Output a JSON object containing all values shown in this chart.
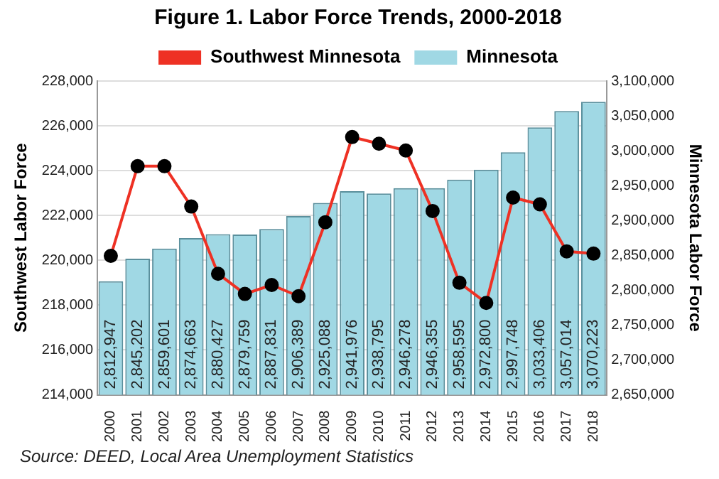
{
  "chart_data": {
    "type": "bar",
    "title": "Figure 1. Labor Force Trends, 2000-2018",
    "ylabel": "Southwest Labor Force",
    "y2label": "Minnesota Labor Force",
    "categories": [
      "2000",
      "2001",
      "2002",
      "2003",
      "2004",
      "2005",
      "2006",
      "2007",
      "2008",
      "2009",
      "2010",
      "2011",
      "2012",
      "2013",
      "2014",
      "2015",
      "2016",
      "2017",
      "2018"
    ],
    "series": [
      {
        "name": "Southwest Minnesota",
        "type": "line",
        "color": "#ee3124",
        "axis": "y",
        "values": [
          220200,
          224200,
          224200,
          222400,
          219400,
          218500,
          218900,
          218400,
          221700,
          225500,
          225200,
          224900,
          222200,
          219000,
          218100,
          222800,
          222500,
          220400,
          220300
        ]
      },
      {
        "name": "Minnesota",
        "color": "#a0d8e4",
        "axis": "y2",
        "values": [
          2812947,
          2845202,
          2859601,
          2874663,
          2880427,
          2879759,
          2887831,
          2906389,
          2925088,
          2941976,
          2938795,
          2946278,
          2946355,
          2958595,
          2972800,
          2997748,
          3033406,
          3057014,
          3070223
        ],
        "value_labels": [
          "2,812,947",
          "2,845,202",
          "2,859,601",
          "2,874,663",
          "2,880,427",
          "2,879,759",
          "2,887,831",
          "2,906,389",
          "2,925,088",
          "2,941,976",
          "2,938,795",
          "2,946,278",
          "2,946,355",
          "2,958,595",
          "2,972,800",
          "2,997,748",
          "3,033,406",
          "3,057,014",
          "3,070,223"
        ]
      }
    ],
    "ylim": [
      214000,
      228000
    ],
    "yticks": [
      {
        "value": 214000,
        "label": "214,000"
      },
      {
        "value": 216000,
        "label": "216,000"
      },
      {
        "value": 218000,
        "label": "218,000"
      },
      {
        "value": 220000,
        "label": "220,000"
      },
      {
        "value": 222000,
        "label": "222,000"
      },
      {
        "value": 224000,
        "label": "224,000"
      },
      {
        "value": 226000,
        "label": "226,000"
      },
      {
        "value": 228000,
        "label": "228,000"
      }
    ],
    "y2lim": [
      2650000,
      3100000
    ],
    "y2ticks": [
      {
        "value": 2650000,
        "label": "2,650,000"
      },
      {
        "value": 2700000,
        "label": "2,700,000"
      },
      {
        "value": 2750000,
        "label": "2,750,000"
      },
      {
        "value": 2800000,
        "label": "2,800,000"
      },
      {
        "value": 2850000,
        "label": "2,850,000"
      },
      {
        "value": 2900000,
        "label": "2,900,000"
      },
      {
        "value": 2950000,
        "label": "2,950,000"
      },
      {
        "value": 3000000,
        "label": "3,000,000"
      },
      {
        "value": 3050000,
        "label": "3,050,000"
      },
      {
        "value": 3100000,
        "label": "3,100,000"
      }
    ],
    "grid": "y",
    "legend": "top",
    "marker": "circle",
    "line_style": "solid",
    "annotations": [
      "Source: DEED, Local Area Unemployment Statistics"
    ]
  }
}
